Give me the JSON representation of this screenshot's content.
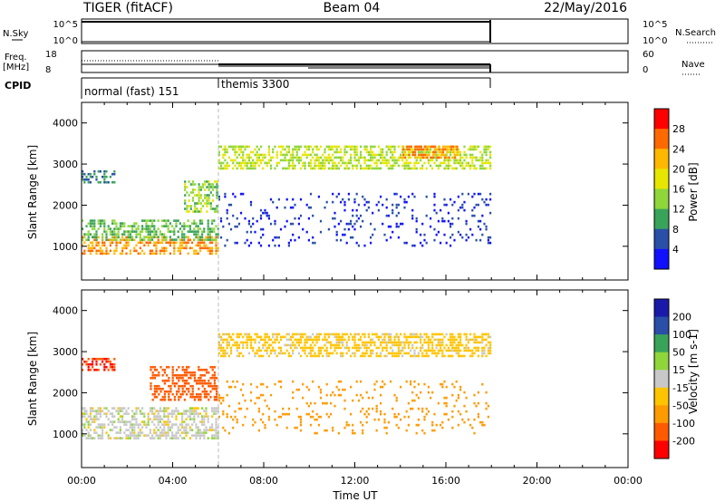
{
  "header": {
    "station": "TIGER (fitACF)",
    "beam": "Beam 04",
    "date": "22/May/2016"
  },
  "top_panels": {
    "nsky_label": "N.Sky",
    "nsearch_label": "N.Search",
    "nsky_ticks": [
      "10^5",
      "10^0"
    ],
    "nsearch_ticks": [
      "10^5",
      "10^0"
    ],
    "freq_label_1": "Freq.",
    "freq_label_2": "[MHz]",
    "freq_ticks": [
      "18",
      "8"
    ],
    "nave_label": "Nave",
    "nave_ticks": [
      "60",
      "0"
    ],
    "cpid_label": "CPID",
    "cpid_modes": [
      {
        "name": "normal (fast) 151",
        "start_hour": 0
      },
      {
        "name": "themis 3300",
        "start_hour": 6
      }
    ]
  },
  "colorbars": {
    "power": {
      "label": "Power [dB]",
      "ticks": [
        "28",
        "24",
        "20",
        "16",
        "12",
        "8",
        "4"
      ],
      "colors": [
        "#ff0000",
        "#ff6a00",
        "#ffb800",
        "#e6e600",
        "#8fd63a",
        "#3aa35a",
        "#2a4fa8",
        "#1010ff"
      ]
    },
    "velocity": {
      "label": "Velocity [m s-1]",
      "ticks": [
        "200",
        "100",
        "50",
        "15",
        "-15",
        "-50",
        "-100",
        "-200"
      ],
      "colors": [
        "#1a1aaa",
        "#2a4fa8",
        "#3aa35a",
        "#8fd63a",
        "#c8c8c8",
        "#ffc400",
        "#ff9a00",
        "#ff5a00",
        "#ff0000"
      ]
    }
  },
  "axes": {
    "ylabel": "Slant Range [km]",
    "yticks": [
      "4000",
      "3000",
      "2000",
      "1000"
    ],
    "xticks": [
      "00:00",
      "04:00",
      "08:00",
      "12:00",
      "16:00",
      "20:00",
      "00:00"
    ],
    "xlabel": "Time UT"
  },
  "chart_data": [
    {
      "type": "heatmap",
      "title": "Power",
      "xlabel": "",
      "ylabel": "Slant Range [km]",
      "xlim_hours": [
        0,
        24
      ],
      "ylim_km": [
        180,
        4500
      ],
      "colorbar_label": "Power [dB]",
      "bands": [
        {
          "t0": 0.0,
          "t1": 6.0,
          "r0": 800,
          "r1": 1250,
          "value_db": 26
        },
        {
          "t0": 0.0,
          "t1": 6.0,
          "r0": 1100,
          "r1": 1650,
          "value_db": 14
        },
        {
          "t0": 0.0,
          "t1": 1.5,
          "r0": 2500,
          "r1": 2850,
          "value_db": 10
        },
        {
          "t0": 4.5,
          "t1": 6.0,
          "r0": 1800,
          "r1": 2600,
          "value_db": 16
        },
        {
          "t0": 6.0,
          "t1": 18.0,
          "r0": 2850,
          "r1": 3450,
          "value_db": 18
        },
        {
          "t0": 14.0,
          "t1": 16.5,
          "r0": 3100,
          "r1": 3450,
          "value_db": 26
        },
        {
          "t0": 6.0,
          "t1": 18.0,
          "r0": 1000,
          "r1": 2300,
          "value_db": 6
        }
      ]
    },
    {
      "type": "heatmap",
      "title": "Velocity",
      "xlabel": "Time UT",
      "ylabel": "Slant Range [km]",
      "xlim_hours": [
        0,
        24
      ],
      "ylim_km": [
        180,
        4500
      ],
      "colorbar_label": "Velocity [m s-1]",
      "bands": [
        {
          "t0": 0.0,
          "t1": 6.0,
          "r0": 850,
          "r1": 1650,
          "value_ms": 0
        },
        {
          "t0": 0.0,
          "t1": 1.5,
          "r0": 2500,
          "r1": 2850,
          "value_ms": -200
        },
        {
          "t0": 3.0,
          "t1": 6.0,
          "r0": 1800,
          "r1": 2650,
          "value_ms": -150
        },
        {
          "t0": 6.0,
          "t1": 18.0,
          "r0": 2850,
          "r1": 3450,
          "value_ms": -30
        },
        {
          "t0": 6.0,
          "t1": 18.0,
          "r0": 1000,
          "r1": 2300,
          "value_ms": -80
        }
      ]
    }
  ]
}
